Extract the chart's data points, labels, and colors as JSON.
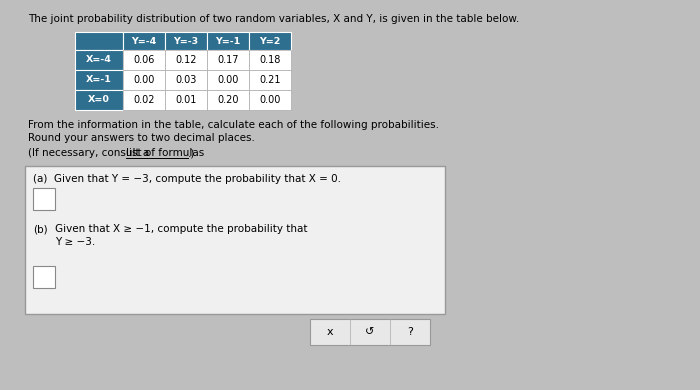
{
  "title_text": "The joint probability distribution of two random variables, X and Y, is given in the table below.",
  "col_headers": [
    "Y=-4",
    "Y=-3",
    "Y=-1",
    "Y=2"
  ],
  "row_headers": [
    "X=-4",
    "X=-1",
    "X=0"
  ],
  "table_data": [
    [
      0.06,
      0.12,
      0.17,
      0.18
    ],
    [
      0.0,
      0.03,
      0.0,
      0.21
    ],
    [
      0.02,
      0.01,
      0.2,
      0.0
    ]
  ],
  "header_bg": "#2E6E8E",
  "header_text_color": "#FFFFFF",
  "cell_bg": "#FFFFFF",
  "cell_text_color": "#000000",
  "below_table_text1": "From the information in the table, calculate each of the following probabilities.",
  "below_table_text2": "Round your answers to two decimal places.",
  "formula_text": "(If necessary, consult a ",
  "formula_link": "list of formulas",
  "formula_end": ".)",
  "box_a_text": "(a)  Given that Y = −3, compute the probability that X = 0.",
  "box_b_label": "(b)",
  "box_b_line1": "Given that X ≥ −1, compute the probability that",
  "box_b_line2": "Y ≥ −3.",
  "bg_color": "#BEBEBE",
  "box_bg": "#F0F0F0",
  "btn_bg": "#E8E8E8",
  "bottom_buttons": [
    "x",
    "↺",
    "?"
  ]
}
